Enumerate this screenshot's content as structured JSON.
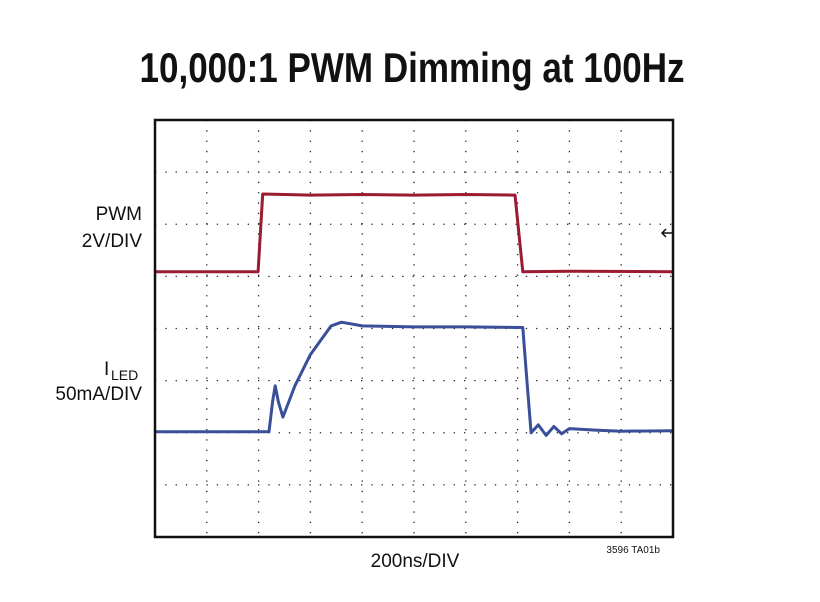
{
  "chart_data": {
    "type": "line",
    "title": "10,000:1 PWM Dimming at 100Hz",
    "x_label": "200ns/DIV",
    "annotations": [
      "PWM",
      "2V/DIV",
      "I",
      "LED",
      "50mA/DIV",
      "3596 TA01b"
    ],
    "xlim": [
      0,
      10
    ],
    "ylim": [
      0,
      8
    ],
    "xticks": [
      0,
      1,
      2,
      3,
      4,
      5,
      6,
      7,
      8,
      9,
      10
    ],
    "yticks": [
      0,
      1,
      2,
      3,
      4,
      5,
      6,
      7,
      8
    ],
    "grid": true,
    "series": [
      {
        "name": "PWM",
        "color": "#9b1b30",
        "x": [
          0,
          1.99,
          2.08,
          3,
          4,
          5,
          6,
          6.95,
          7.1,
          8,
          10
        ],
        "values": [
          5.09,
          5.09,
          6.58,
          6.56,
          6.57,
          6.56,
          6.57,
          6.56,
          5.09,
          5.1,
          5.09
        ]
      },
      {
        "name": "LED",
        "color": "#3a4f9a",
        "x": [
          0,
          2.2,
          2.27,
          2.32,
          2.38,
          2.47,
          2.7,
          3,
          3.4,
          3.6,
          4,
          5,
          6,
          7.1,
          7.18,
          7.26,
          7.4,
          7.55,
          7.7,
          7.85,
          8,
          8.5,
          9,
          10
        ],
        "values": [
          2.02,
          2.02,
          2.6,
          2.9,
          2.6,
          2.3,
          2.9,
          3.5,
          4.05,
          4.12,
          4.05,
          4.03,
          4.03,
          4.02,
          3.0,
          2.0,
          2.15,
          1.95,
          2.12,
          1.98,
          2.08,
          2.05,
          2.03,
          2.04
        ]
      }
    ]
  }
}
